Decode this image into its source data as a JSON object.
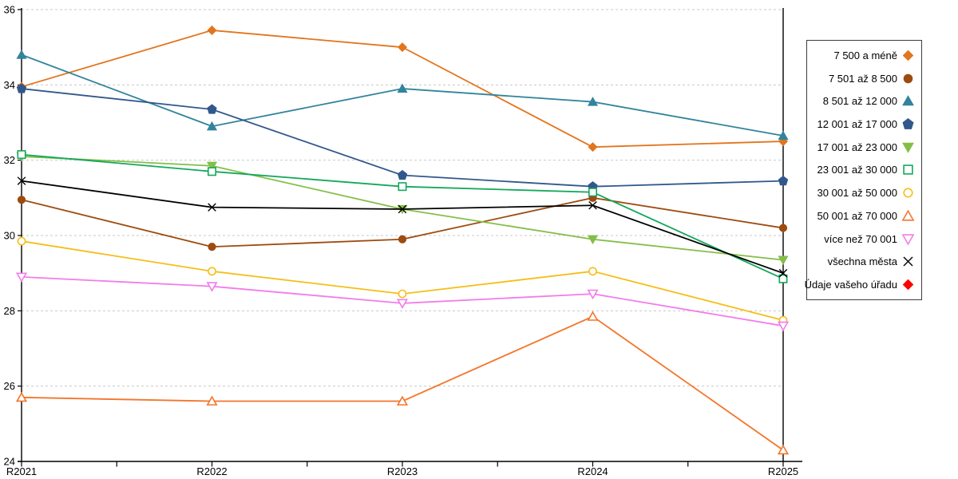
{
  "chart_data": {
    "type": "line",
    "title": "",
    "xlabel": "",
    "ylabel": "",
    "categories": [
      "R2021",
      "R2022",
      "R2023",
      "R2024",
      "R2025"
    ],
    "ylim": [
      24,
      36
    ],
    "yticks": [
      24,
      26,
      28,
      30,
      32,
      34,
      36
    ],
    "grid": "horizontal-dashed",
    "legend_position": "right-outside-boxed",
    "series": [
      {
        "name": "7 500 a méně",
        "marker": "diamond",
        "fill": "filled",
        "color": "#E2751D",
        "values": [
          33.95,
          35.45,
          35.0,
          32.35,
          32.5
        ]
      },
      {
        "name": "7 501 až 8 500",
        "marker": "circle",
        "fill": "filled",
        "color": "#9E4B0F",
        "values": [
          30.95,
          29.7,
          29.9,
          31.0,
          30.2
        ]
      },
      {
        "name": "8 501 až 12 000",
        "marker": "triangle-up",
        "fill": "filled",
        "color": "#31849B",
        "values": [
          34.8,
          32.9,
          33.9,
          33.55,
          32.65
        ]
      },
      {
        "name": "12 001 až 17 000",
        "marker": "pentagon",
        "fill": "filled",
        "color": "#31588C",
        "values": [
          33.9,
          33.35,
          31.6,
          31.3,
          31.45
        ]
      },
      {
        "name": "17 001 až 23 000",
        "marker": "triangle-down",
        "fill": "filled",
        "color": "#84BE48",
        "values": [
          32.1,
          31.85,
          30.7,
          29.9,
          29.35
        ]
      },
      {
        "name": "23 001 až 30 000",
        "marker": "square",
        "fill": "open",
        "color": "#13A85B",
        "values": [
          32.15,
          31.7,
          31.3,
          31.15,
          28.85
        ]
      },
      {
        "name": "30 001 až 50 000",
        "marker": "circle",
        "fill": "open",
        "color": "#F5BE18",
        "values": [
          29.85,
          29.05,
          28.45,
          29.05,
          27.75
        ]
      },
      {
        "name": "50 001 až 70 000",
        "marker": "triangle-up",
        "fill": "open",
        "color": "#F4752B",
        "values": [
          25.7,
          25.6,
          25.6,
          27.85,
          24.3
        ]
      },
      {
        "name": "více než 70 001",
        "marker": "triangle-down",
        "fill": "open",
        "color": "#F27CEB",
        "values": [
          28.9,
          28.65,
          28.2,
          28.45,
          27.6
        ]
      },
      {
        "name": "všechna města",
        "marker": "x",
        "fill": "stroke",
        "color": "#000000",
        "values": [
          31.45,
          30.75,
          30.7,
          30.8,
          29.0
        ]
      },
      {
        "name": "Údaje vašeho úřadu",
        "marker": "diamond",
        "fill": "filled",
        "color": "#FF0000",
        "values": []
      }
    ],
    "colors": {
      "axis": "#000000",
      "gridline": "#C9C9C9",
      "background": "#FFFFFF"
    }
  }
}
